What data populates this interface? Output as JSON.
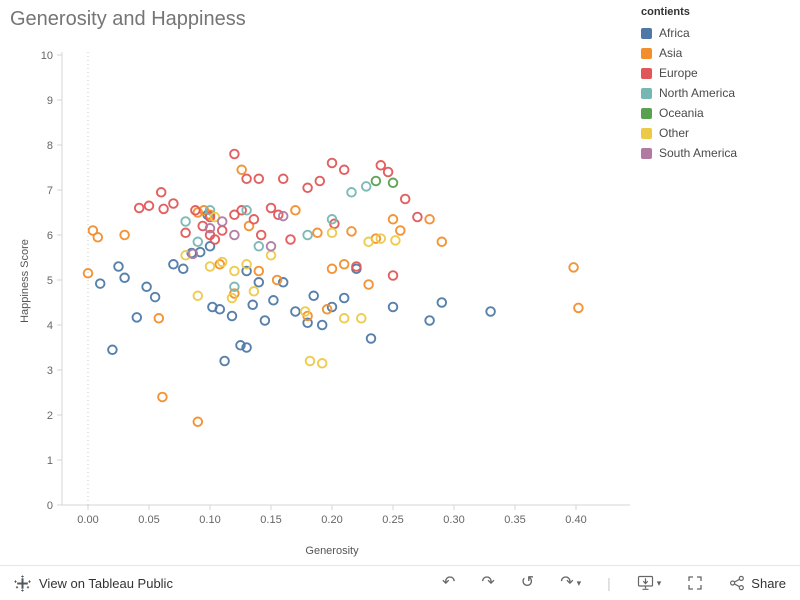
{
  "title": "Generosity and Happiness",
  "legend": {
    "title": "contients",
    "items": [
      {
        "label": "Africa",
        "color": "#4E79A7"
      },
      {
        "label": "Asia",
        "color": "#F28E2B"
      },
      {
        "label": "Europe",
        "color": "#E15759"
      },
      {
        "label": "North America",
        "color": "#76B7B2"
      },
      {
        "label": "Oceania",
        "color": "#59A14F"
      },
      {
        "label": "Other",
        "color": "#EDC948"
      },
      {
        "label": "South America",
        "color": "#B07AA1"
      }
    ]
  },
  "chart_data": {
    "type": "scatter",
    "title": "Generosity and Happiness",
    "xlabel": "Generosity",
    "ylabel": "Happiness Score",
    "xlim": [
      -0.022,
      0.445
    ],
    "ylim": [
      0,
      10
    ],
    "x_ticks": [
      0,
      0.05,
      0.1,
      0.15,
      0.2,
      0.25,
      0.3,
      0.35,
      0.4
    ],
    "y_ticks": [
      0,
      1,
      2,
      3,
      4,
      5,
      6,
      7,
      8,
      9,
      10
    ],
    "grid": "dotted-zero-line-only",
    "marker": "open-circle",
    "legend_position": "top-right",
    "series": [
      {
        "name": "Africa",
        "color": "#4E79A7",
        "points": [
          [
            0.01,
            4.92
          ],
          [
            0.02,
            3.45
          ],
          [
            0.025,
            5.3
          ],
          [
            0.03,
            5.05
          ],
          [
            0.04,
            4.17
          ],
          [
            0.048,
            4.85
          ],
          [
            0.055,
            4.62
          ],
          [
            0.07,
            5.35
          ],
          [
            0.078,
            5.25
          ],
          [
            0.085,
            5.6
          ],
          [
            0.092,
            5.62
          ],
          [
            0.098,
            6.45
          ],
          [
            0.1,
            5.75
          ],
          [
            0.102,
            4.4
          ],
          [
            0.108,
            4.35
          ],
          [
            0.112,
            3.2
          ],
          [
            0.118,
            4.2
          ],
          [
            0.125,
            3.55
          ],
          [
            0.13,
            3.5
          ],
          [
            0.13,
            5.2
          ],
          [
            0.135,
            4.45
          ],
          [
            0.14,
            4.95
          ],
          [
            0.145,
            4.1
          ],
          [
            0.152,
            4.55
          ],
          [
            0.16,
            4.95
          ],
          [
            0.17,
            4.3
          ],
          [
            0.18,
            4.05
          ],
          [
            0.185,
            4.65
          ],
          [
            0.192,
            4.0
          ],
          [
            0.2,
            4.4
          ],
          [
            0.21,
            4.6
          ],
          [
            0.22,
            5.25
          ],
          [
            0.232,
            3.7
          ],
          [
            0.25,
            4.4
          ],
          [
            0.28,
            4.1
          ],
          [
            0.29,
            4.5
          ],
          [
            0.33,
            4.3
          ]
        ]
      },
      {
        "name": "Asia",
        "color": "#F28E2B",
        "points": [
          [
            0.0,
            5.15
          ],
          [
            0.004,
            6.1
          ],
          [
            0.008,
            5.95
          ],
          [
            0.03,
            6.0
          ],
          [
            0.058,
            4.15
          ],
          [
            0.061,
            2.4
          ],
          [
            0.09,
            1.85
          ],
          [
            0.09,
            6.5
          ],
          [
            0.095,
            6.55
          ],
          [
            0.1,
            6.45
          ],
          [
            0.108,
            5.35
          ],
          [
            0.12,
            4.7
          ],
          [
            0.126,
            7.45
          ],
          [
            0.132,
            6.2
          ],
          [
            0.14,
            5.2
          ],
          [
            0.155,
            5.0
          ],
          [
            0.17,
            6.55
          ],
          [
            0.18,
            4.2
          ],
          [
            0.188,
            6.05
          ],
          [
            0.196,
            4.35
          ],
          [
            0.2,
            5.25
          ],
          [
            0.21,
            5.35
          ],
          [
            0.216,
            6.08
          ],
          [
            0.23,
            4.9
          ],
          [
            0.236,
            5.92
          ],
          [
            0.25,
            6.35
          ],
          [
            0.256,
            6.1
          ],
          [
            0.28,
            6.35
          ],
          [
            0.29,
            5.85
          ],
          [
            0.398,
            5.28
          ],
          [
            0.402,
            4.38
          ]
        ]
      },
      {
        "name": "Europe",
        "color": "#E15759",
        "points": [
          [
            0.042,
            6.6
          ],
          [
            0.05,
            6.65
          ],
          [
            0.06,
            6.95
          ],
          [
            0.062,
            6.58
          ],
          [
            0.07,
            6.7
          ],
          [
            0.08,
            6.05
          ],
          [
            0.088,
            6.55
          ],
          [
            0.094,
            6.2
          ],
          [
            0.1,
            6.4
          ],
          [
            0.1,
            6.0
          ],
          [
            0.104,
            5.9
          ],
          [
            0.11,
            6.1
          ],
          [
            0.12,
            7.8
          ],
          [
            0.12,
            6.45
          ],
          [
            0.126,
            6.55
          ],
          [
            0.13,
            7.25
          ],
          [
            0.136,
            6.35
          ],
          [
            0.14,
            7.25
          ],
          [
            0.142,
            6.0
          ],
          [
            0.15,
            6.6
          ],
          [
            0.156,
            6.45
          ],
          [
            0.16,
            7.25
          ],
          [
            0.166,
            5.9
          ],
          [
            0.18,
            7.05
          ],
          [
            0.19,
            7.2
          ],
          [
            0.2,
            7.6
          ],
          [
            0.202,
            6.25
          ],
          [
            0.21,
            7.45
          ],
          [
            0.22,
            5.3
          ],
          [
            0.24,
            7.55
          ],
          [
            0.246,
            7.4
          ],
          [
            0.25,
            5.1
          ],
          [
            0.26,
            6.8
          ],
          [
            0.27,
            6.4
          ]
        ]
      },
      {
        "name": "North America",
        "color": "#76B7B2",
        "points": [
          [
            0.08,
            6.3
          ],
          [
            0.09,
            5.85
          ],
          [
            0.1,
            6.55
          ],
          [
            0.12,
            4.85
          ],
          [
            0.13,
            6.55
          ],
          [
            0.14,
            5.75
          ],
          [
            0.18,
            6.0
          ],
          [
            0.2,
            6.35
          ],
          [
            0.216,
            6.95
          ],
          [
            0.228,
            7.08
          ]
        ]
      },
      {
        "name": "Oceania",
        "color": "#59A14F",
        "points": [
          [
            0.236,
            7.2
          ],
          [
            0.25,
            7.16
          ]
        ]
      },
      {
        "name": "Other",
        "color": "#EDC948",
        "points": [
          [
            0.08,
            5.55
          ],
          [
            0.09,
            4.65
          ],
          [
            0.1,
            5.3
          ],
          [
            0.104,
            6.4
          ],
          [
            0.11,
            5.4
          ],
          [
            0.118,
            4.6
          ],
          [
            0.12,
            5.2
          ],
          [
            0.13,
            5.35
          ],
          [
            0.136,
            4.75
          ],
          [
            0.15,
            5.55
          ],
          [
            0.178,
            4.3
          ],
          [
            0.182,
            3.2
          ],
          [
            0.192,
            3.15
          ],
          [
            0.2,
            6.05
          ],
          [
            0.21,
            4.15
          ],
          [
            0.224,
            4.15
          ],
          [
            0.23,
            5.85
          ],
          [
            0.24,
            5.92
          ],
          [
            0.252,
            5.88
          ]
        ]
      },
      {
        "name": "South America",
        "color": "#B07AA1",
        "points": [
          [
            0.086,
            5.58
          ],
          [
            0.1,
            6.15
          ],
          [
            0.11,
            6.3
          ],
          [
            0.12,
            6.0
          ],
          [
            0.15,
            5.75
          ],
          [
            0.16,
            6.42
          ]
        ]
      }
    ]
  },
  "toolbar": {
    "view_label": "View on Tableau Public",
    "share_label": "Share"
  },
  "icons": {
    "undo": "↶",
    "redo": "↷",
    "replay": "↺",
    "refresh": "↷",
    "caret_down": "▾",
    "separator": "|"
  },
  "colors": {
    "axis_line": "#d4d4d4",
    "tick_text": "#666666",
    "title_text": "#757575"
  }
}
